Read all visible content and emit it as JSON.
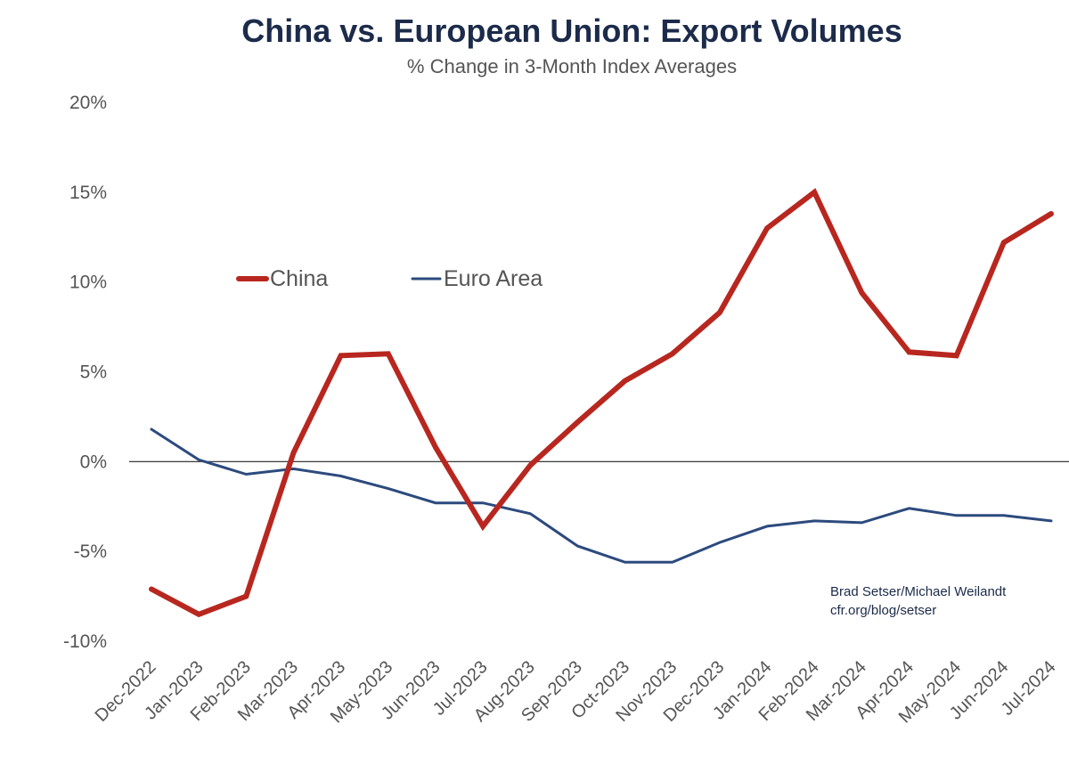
{
  "chart_data": {
    "type": "line",
    "title": "China vs. European Union: Export Volumes",
    "subtitle": "% Change in 3-Month Index Averages",
    "xlabel": "",
    "ylabel": "",
    "ylim": [
      -10,
      20
    ],
    "yticks": [
      "20%",
      "15%",
      "10%",
      "5%",
      "0%",
      "-5%",
      "-10%"
    ],
    "yticks_values": [
      20,
      15,
      10,
      5,
      0,
      -5,
      -10
    ],
    "categories": [
      "Dec-2022",
      "Jan-2023",
      "Feb-2023",
      "Mar-2023",
      "Apr-2023",
      "May-2023",
      "Jun-2023",
      "Jul-2023",
      "Aug-2023",
      "Sep-2023",
      "Oct-2023",
      "Nov-2023",
      "Dec-2023",
      "Jan-2024",
      "Feb-2024",
      "Mar-2024",
      "Apr-2024",
      "May-2024",
      "Jun-2024",
      "Jul-2024"
    ],
    "series": [
      {
        "name": "China",
        "color": "#b8271f",
        "values": [
          -7.1,
          -8.5,
          -7.5,
          0.5,
          5.9,
          6.0,
          0.8,
          -3.6,
          -0.2,
          2.2,
          4.5,
          6.0,
          8.3,
          13.0,
          15.0,
          9.4,
          6.1,
          5.9,
          12.2,
          13.8
        ]
      },
      {
        "name": "Euro Area",
        "color": "#2c4a7e",
        "values": [
          1.8,
          0.1,
          -0.7,
          -0.4,
          -0.8,
          -1.5,
          -2.3,
          -2.3,
          -2.9,
          -4.7,
          -5.6,
          -5.6,
          -4.5,
          -3.6,
          -3.3,
          -3.4,
          -2.6,
          -3.0,
          -3.0,
          -3.3
        ]
      }
    ],
    "legend": "upper-left",
    "source_lines": [
      "Brad Setser/Michael Weilandt",
      "cfr.org/blog/setser"
    ]
  }
}
